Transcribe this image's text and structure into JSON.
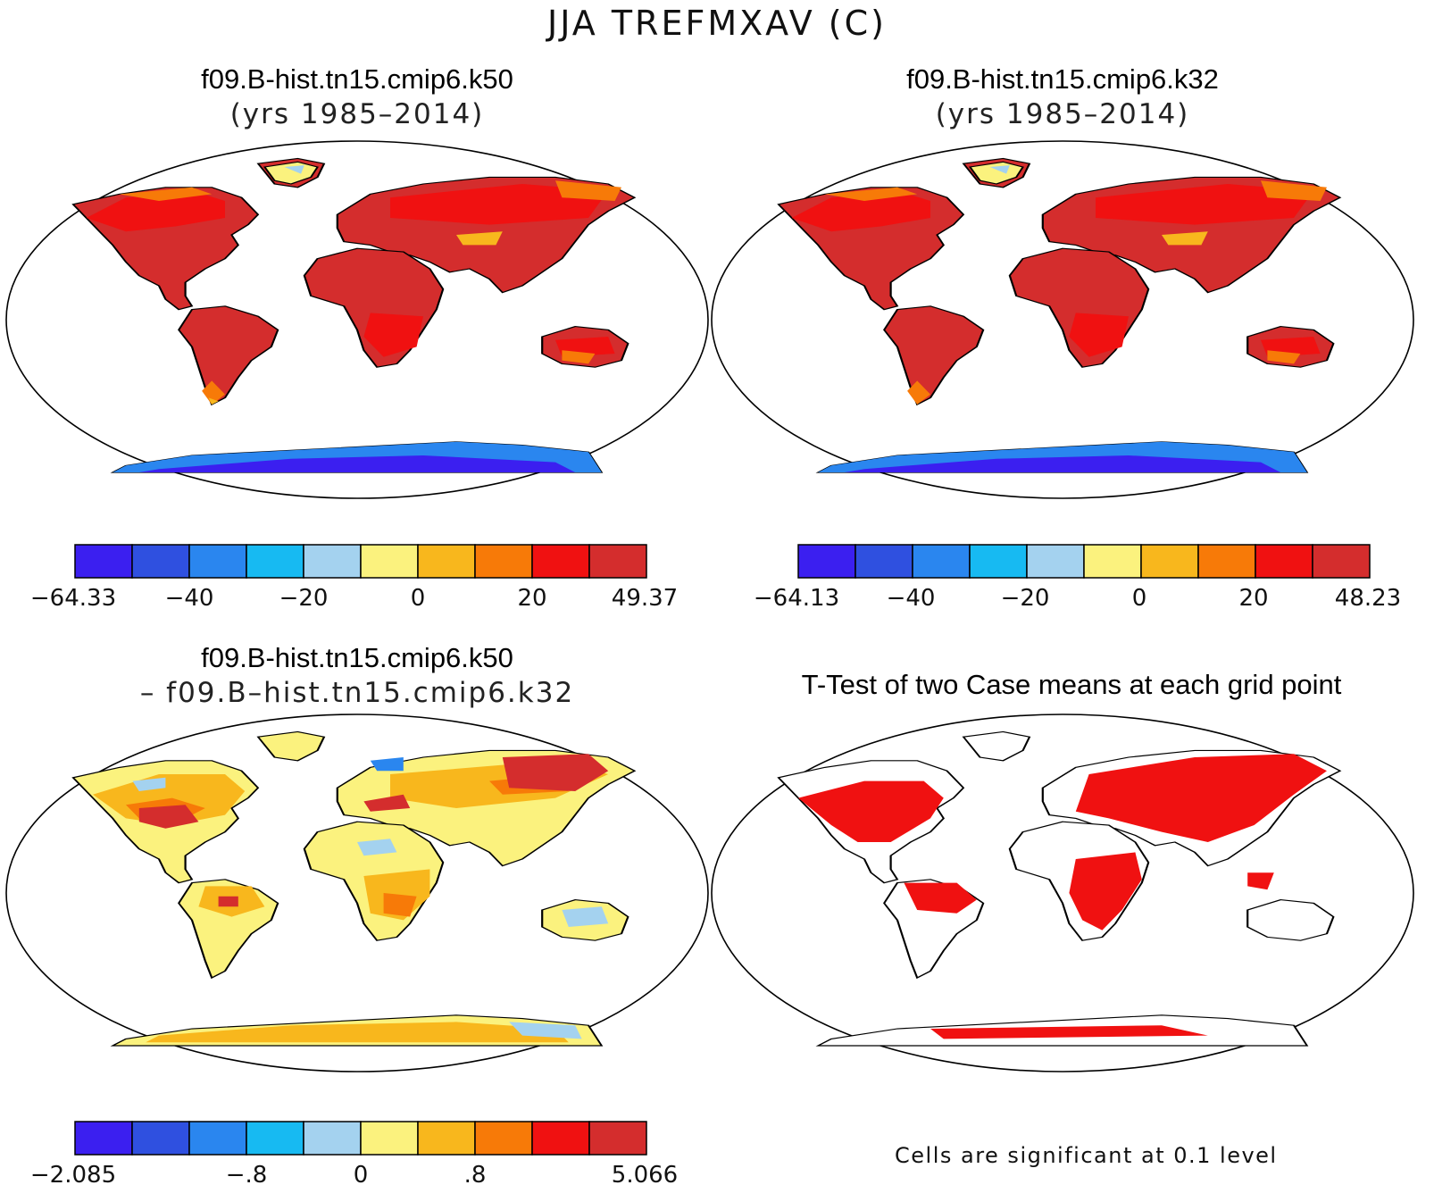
{
  "figure_title": "JJA TREFMXAV (C)",
  "panels": [
    {
      "title_line1": "f09.B-hist.tn15.cmip6.k50",
      "title_line2": "(yrs 1985–2014)"
    },
    {
      "title_line1": "f09.B-hist.tn15.cmip6.k32",
      "title_line2": "(yrs 1985–2014)"
    },
    {
      "title_line1": "f09.B-hist.tn15.cmip6.k50",
      "title_line2": "– f09.B–hist.tn15.cmip6.k32"
    },
    {
      "title_line1": "T-Test of two Case means at each grid point",
      "title_line2": ""
    }
  ],
  "colors": {
    "levels": [
      "#3b1ff0",
      "#2f50e0",
      "#2a86ef",
      "#17baf2",
      "#a4d2ef",
      "#fbf27e",
      "#f8b71d",
      "#f77a08",
      "#f01111",
      "#d42d2d"
    ],
    "land_white": "#ffffff",
    "significant": "#f01111"
  },
  "colorbars": [
    {
      "labels": [
        "−64.33",
        "−40",
        "−20",
        "0",
        "20",
        "49.37"
      ]
    },
    {
      "labels": [
        "−64.13",
        "−40",
        "−20",
        "0",
        "20",
        "48.23"
      ]
    },
    {
      "labels": [
        "−2.085",
        "−.8",
        "0",
        ".8",
        "5.066"
      ]
    }
  ],
  "significance_note": "Cells are significant at 0.1 level"
}
